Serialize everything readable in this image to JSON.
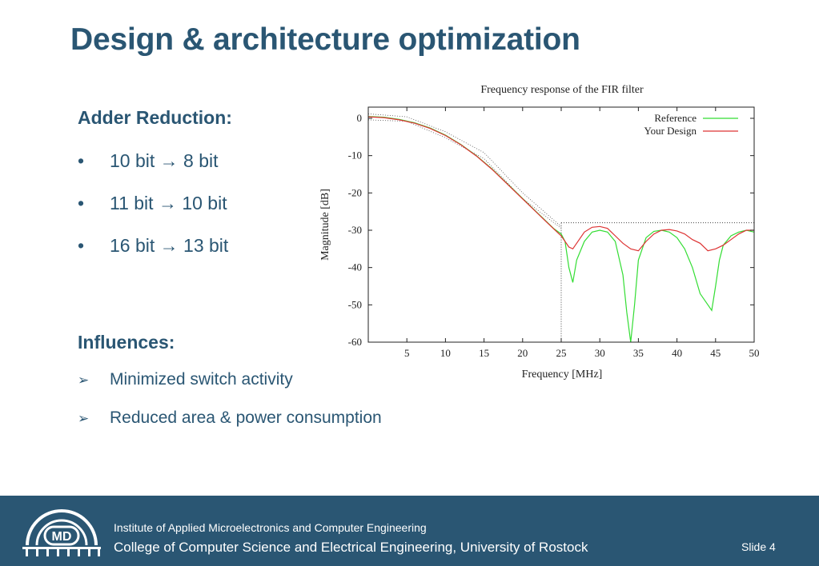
{
  "slide": {
    "title": "Design & architecture optimization",
    "adder_heading": "Adder Reduction:",
    "bullets": [
      {
        "marker": "•",
        "text": "10 bit → 8 bit"
      },
      {
        "marker": "•",
        "text": "11 bit → 10 bit"
      },
      {
        "marker": "•",
        "text": "16 bit → 13 bit"
      }
    ],
    "influences_heading": "Influences:",
    "influences": [
      {
        "marker": "➢",
        "text": "Minimized switch activity"
      },
      {
        "marker": "➢",
        "text": "Reduced area & power consumption"
      }
    ]
  },
  "chart_data": {
    "type": "line",
    "title": "Frequency response of the FIR filter",
    "xlabel": "Frequency [MHz]",
    "ylabel": "Magnitude [dB]",
    "xlim": [
      0,
      50
    ],
    "ylim": [
      -60,
      3
    ],
    "xticks": [
      5,
      10,
      15,
      20,
      25,
      30,
      35,
      40,
      45,
      50
    ],
    "yticks": [
      0,
      -10,
      -20,
      -30,
      -40,
      -50,
      -60
    ],
    "legend_position": "top-right",
    "guides": {
      "stopband_edge_mhz": 25,
      "stopband_level_db": -28
    },
    "series": [
      {
        "name": "Reference",
        "color": "#33dd33",
        "x": [
          0,
          2,
          4,
          6,
          8,
          10,
          12,
          14,
          16,
          18,
          20,
          21,
          22,
          23,
          24,
          25,
          25.5,
          26,
          26.5,
          27,
          28,
          29,
          30,
          31,
          32,
          33,
          33.5,
          34,
          34.5,
          35,
          36,
          37,
          38,
          39,
          40,
          41,
          42,
          43,
          44,
          44.5,
          45,
          45.5,
          46,
          47,
          48,
          49,
          50
        ],
        "values": [
          0.5,
          0.3,
          -0.3,
          -1.2,
          -2.6,
          -4.5,
          -7,
          -10,
          -13.5,
          -17.5,
          -21.5,
          -23.5,
          -25.5,
          -27.5,
          -29.5,
          -31,
          -33,
          -40,
          -44,
          -38,
          -33,
          -30.5,
          -30,
          -30.5,
          -33,
          -42,
          -52,
          -60,
          -50,
          -38,
          -32,
          -30.3,
          -30,
          -30.5,
          -32,
          -35,
          -40,
          -47,
          -50,
          -51.5,
          -45,
          -38,
          -34,
          -31.5,
          -30.5,
          -30,
          -30.5
        ]
      },
      {
        "name": "Your Design",
        "color": "#dd3333",
        "x": [
          0,
          2,
          4,
          6,
          8,
          10,
          12,
          14,
          16,
          18,
          20,
          21,
          22,
          23,
          24,
          25,
          26,
          26.5,
          27,
          28,
          29,
          30,
          31,
          32,
          33,
          34,
          35,
          36,
          37,
          38,
          39,
          40,
          41,
          42,
          43,
          44,
          45,
          46,
          47,
          48,
          49,
          50
        ],
        "values": [
          0.4,
          0.2,
          -0.4,
          -1.3,
          -2.7,
          -4.6,
          -7.1,
          -10.1,
          -13.6,
          -17.6,
          -21.6,
          -23.6,
          -25.6,
          -27.6,
          -29.6,
          -31.5,
          -34.5,
          -35,
          -33.5,
          -30.5,
          -29.2,
          -29,
          -29.5,
          -31.5,
          -33.5,
          -35,
          -35.5,
          -33,
          -31,
          -30,
          -29.8,
          -30.2,
          -31,
          -32.5,
          -33.5,
          -35.5,
          -35,
          -34,
          -32.5,
          -31,
          -30,
          -30
        ]
      }
    ]
  },
  "footer": {
    "logo_text": "MD",
    "institute": "Institute of Applied Microelectronics and Computer Engineering",
    "college": "College of Computer Science and Electrical Engineering, University of Rostock",
    "slide_label": "Slide 4"
  },
  "colors": {
    "accent": "#2a5673",
    "footer_bg": "#2a5673"
  }
}
